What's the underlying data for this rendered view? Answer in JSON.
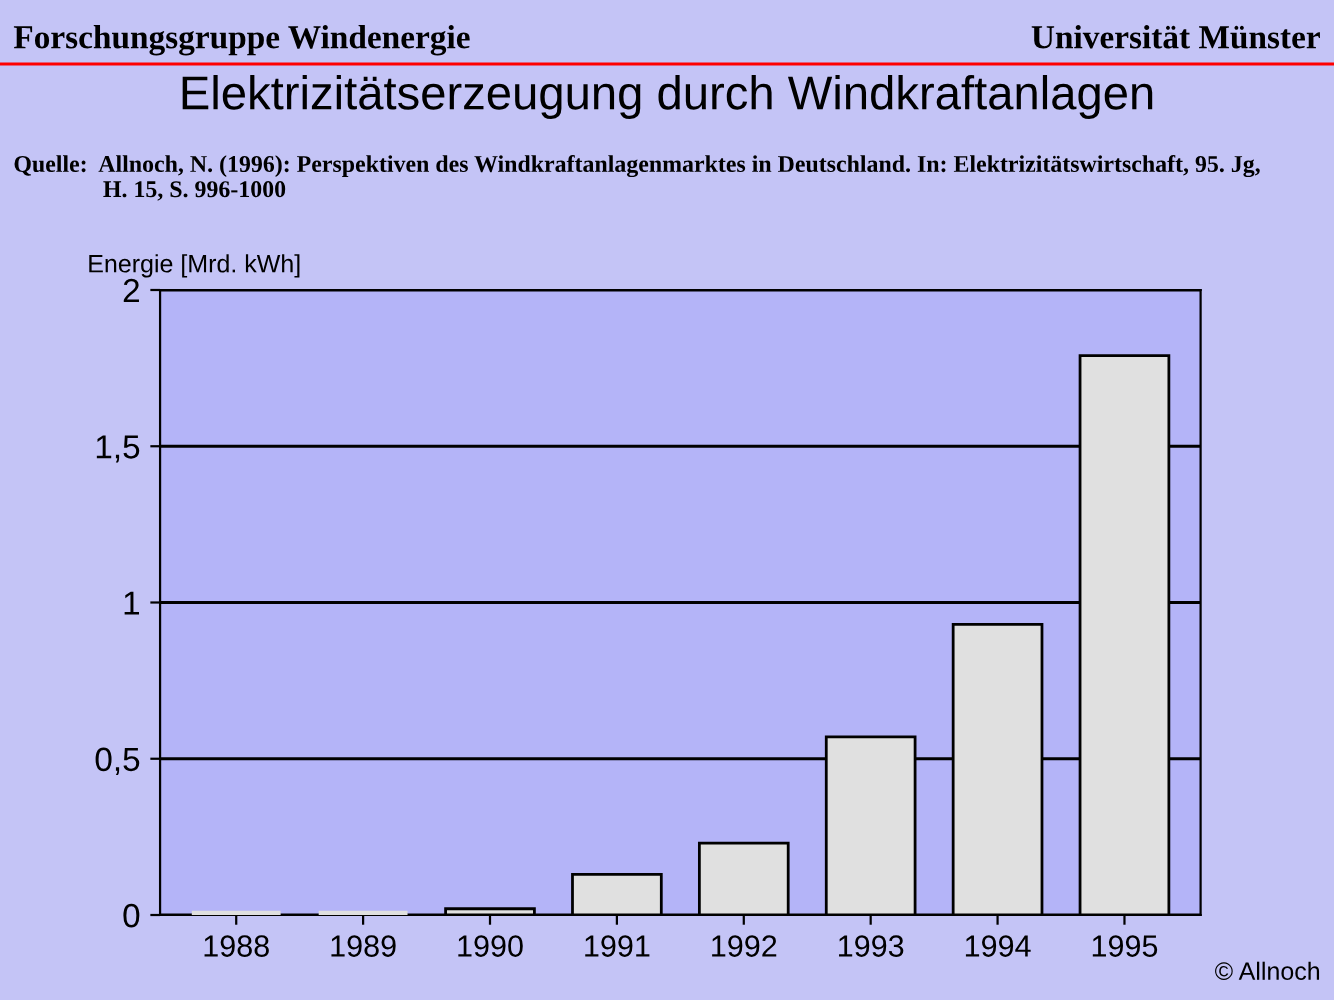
{
  "chart_data": {
    "type": "bar",
    "title": "Elektrizitätserzeugung durch Windkraftanlagen",
    "annotations": [
      "Forschungsgruppe Windenergie",
      "Universität Münster",
      "Quelle:  Allnoch, N. (1996): Perspektiven des Windkraftanlagenmarktes in Deutschland. In: Elektrizitätswirtschaft, 95. Jg,\n               H. 15, S. 996-1000",
      "© Allnoch"
    ],
    "ylabel": "Energie [Mrd. kWh]",
    "categories": [
      "1988",
      "1989",
      "1990",
      "1991",
      "1992",
      "1993",
      "1994",
      "1995"
    ],
    "values": [
      0,
      0,
      0.02,
      0.13,
      0.23,
      0.57,
      0.93,
      1.79
    ],
    "color": "#e0e0e0",
    "ylim": [
      0,
      2
    ],
    "yticks": [
      0,
      {
        "value": 0.5,
        "label": "0,5"
      },
      1,
      {
        "value": 1.5,
        "label": "1,5"
      },
      2
    ],
    "grid": "y",
    "legend": false
  }
}
